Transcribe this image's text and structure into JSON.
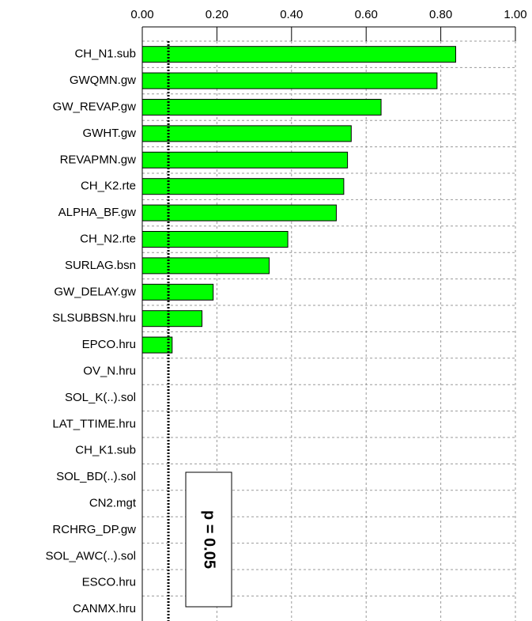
{
  "chart_data": {
    "type": "bar",
    "orientation": "horizontal",
    "categories": [
      "CH_N1.sub",
      "GWQMN.gw",
      "GW_REVAP.gw",
      "GWHT.gw",
      "REVAPMN.gw",
      "CH_K2.rte",
      "ALPHA_BF.gw",
      "CH_N2.rte",
      "SURLAG.bsn",
      "GW_DELAY.gw",
      "SLSUBBSN.hru",
      "EPCO.hru",
      "OV_N.hru",
      "SOL_K(..).sol",
      "LAT_TTIME.hru",
      "CH_K1.sub",
      "SOL_BD(..).sol",
      "CN2.mgt",
      "RCHRG_DP.gw",
      "SOL_AWC(..).sol",
      "ESCO.hru",
      "CANMX.hru"
    ],
    "values": [
      0.84,
      0.79,
      0.64,
      0.56,
      0.55,
      0.54,
      0.52,
      0.39,
      0.34,
      0.19,
      0.16,
      0.08,
      0,
      0,
      0,
      0,
      0,
      0,
      0,
      0,
      0,
      0
    ],
    "color": "#00ff00",
    "xlim": [
      0,
      1
    ],
    "xticks": [
      {
        "value": 0,
        "label": "0.00"
      },
      {
        "value": 0.2,
        "label": "0.20"
      },
      {
        "value": 0.4,
        "label": "0.40"
      },
      {
        "value": 0.6,
        "label": "0.60"
      },
      {
        "value": 0.8,
        "label": "0.80"
      },
      {
        "value": 1,
        "label": "1.00"
      }
    ],
    "grid": true,
    "threshold": {
      "value": 0.07,
      "label": "p = 0.05"
    }
  }
}
